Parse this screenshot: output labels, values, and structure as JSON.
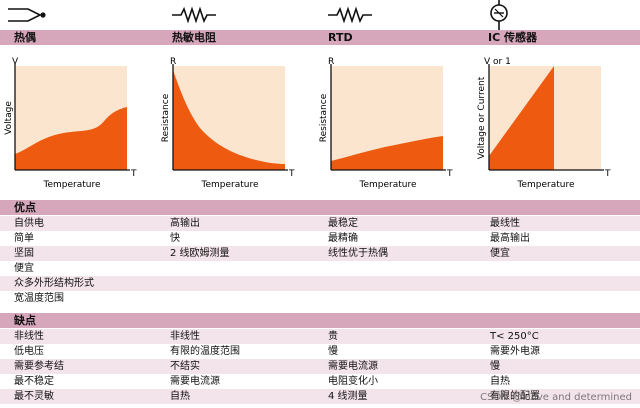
{
  "columns": [
    {
      "title": "热偶",
      "icon": "thermocouple-icon",
      "graph": {
        "ylabel": "V",
        "yaxis_title": "Voltage",
        "xaxis_title": "Temperature",
        "xlabel": "T"
      }
    },
    {
      "title": "热敏电阻",
      "icon": "resistor-icon",
      "graph": {
        "ylabel": "R",
        "yaxis_title": "Resistance",
        "xaxis_title": "Temperature",
        "xlabel": "T"
      }
    },
    {
      "title": "RTD",
      "icon": "resistor-icon",
      "graph": {
        "ylabel": "R",
        "yaxis_title": "Resistance",
        "xaxis_title": "Temperature",
        "xlabel": "T"
      }
    },
    {
      "title": "IC 传感器",
      "icon": "ic-sensor-icon",
      "graph": {
        "ylabel": "V or 1",
        "yaxis_title": "Voltage or Current",
        "xaxis_title": "Temperature",
        "xlabel": "T"
      }
    }
  ],
  "colors": {
    "header": "#d6a6ba",
    "graph_bg": "#fbe5cf",
    "curve_fill": "#ee5a10",
    "row_alt": "#f3e3ea"
  },
  "advantages": {
    "title": "优点",
    "rows": [
      [
        "自供电",
        "高输出",
        "最稳定",
        "最线性"
      ],
      [
        "简单",
        "快",
        "最精确",
        "最高输出"
      ],
      [
        "坚固",
        "2 线欧姆测量",
        "线性优于热偶",
        "便宜"
      ],
      [
        "便宜",
        "",
        "",
        ""
      ],
      [
        "众多外形结构形式",
        "",
        "",
        ""
      ],
      [
        "宽温度范围",
        "",
        "",
        ""
      ]
    ]
  },
  "disadvantages": {
    "title": "缺点",
    "rows": [
      [
        "非线性",
        "非线性",
        "贵",
        "T< 250°C"
      ],
      [
        "低电压",
        "有限的温度范围",
        "慢",
        "需要外电源"
      ],
      [
        "需要参考结",
        "不结实",
        "需要电流源",
        "慢"
      ],
      [
        "最不稳定",
        "需要电流源",
        "电阻变化小",
        "自热"
      ],
      [
        "最不灵敏",
        "自热",
        "4 线测量",
        "有限的配置"
      ]
    ]
  },
  "watermark": "CSDN @leave and determined"
}
